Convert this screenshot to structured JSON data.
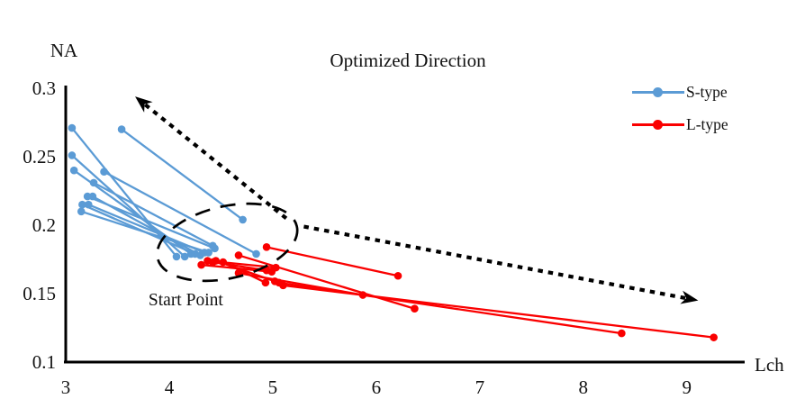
{
  "chart_data": {
    "type": "line",
    "title": "Optimized Direction",
    "xlabel": "Lch",
    "ylabel": "NA",
    "xlim": [
      3,
      9.55
    ],
    "ylim": [
      0.1,
      0.3
    ],
    "x_ticks": [
      "3",
      "4",
      "5",
      "6",
      "7",
      "8",
      "9"
    ],
    "x_tick_values": [
      3,
      4,
      5,
      6,
      7,
      8,
      9
    ],
    "y_ticks": [
      "0.1",
      "0.15",
      "0.2",
      "0.25",
      "0.3"
    ],
    "y_tick_values": [
      0.1,
      0.15,
      0.2,
      0.25,
      0.3
    ],
    "grid": false,
    "legend_position": "top-right",
    "series": [
      {
        "name": "S-type",
        "color": "#5B9BD5",
        "segments": [
          [
            [
              4.07,
              0.177
            ],
            [
              3.06,
              0.271
            ]
          ],
          [
            [
              4.15,
              0.177
            ],
            [
              3.06,
              0.251
            ]
          ],
          [
            [
              4.21,
              0.179
            ],
            [
              3.08,
              0.24
            ]
          ],
          [
            [
              4.25,
              0.179
            ],
            [
              3.16,
              0.215
            ]
          ],
          [
            [
              4.3,
              0.178
            ],
            [
              3.26,
              0.221
            ]
          ],
          [
            [
              4.34,
              0.18
            ],
            [
              3.22,
              0.215
            ]
          ],
          [
            [
              4.38,
              0.18
            ],
            [
              3.15,
              0.21
            ]
          ],
          [
            [
              4.44,
              0.183
            ],
            [
              3.21,
              0.221
            ]
          ],
          [
            [
              4.42,
              0.185
            ],
            [
              3.27,
              0.231
            ]
          ],
          [
            [
              4.71,
              0.204
            ],
            [
              3.54,
              0.27
            ]
          ],
          [
            [
              4.84,
              0.179
            ],
            [
              3.37,
              0.239
            ]
          ]
        ]
      },
      {
        "name": "L-type",
        "color": "#FA0000",
        "segments": [
          [
            [
              4.94,
              0.184
            ],
            [
              6.21,
              0.163
            ]
          ],
          [
            [
              4.67,
              0.165
            ],
            [
              5.87,
              0.149
            ]
          ],
          [
            [
              4.67,
              0.178
            ],
            [
              6.37,
              0.139
            ]
          ],
          [
            [
              5.06,
              0.158
            ],
            [
              8.37,
              0.121
            ]
          ],
          [
            [
              5.1,
              0.156
            ],
            [
              9.26,
              0.118
            ]
          ],
          [
            [
              4.31,
              0.171
            ],
            [
              4.99,
              0.166
            ]
          ],
          [
            [
              4.37,
              0.174
            ],
            [
              5.03,
              0.169
            ]
          ],
          [
            [
              4.42,
              0.173
            ],
            [
              4.94,
              0.167
            ]
          ],
          [
            [
              4.45,
              0.174
            ],
            [
              5.02,
              0.159
            ]
          ],
          [
            [
              4.52,
              0.173
            ],
            [
              4.93,
              0.158
            ]
          ]
        ]
      }
    ],
    "annotations": {
      "ellipse": {
        "label": "Start Point",
        "center": [
          4.56,
          0.1875
        ],
        "rx_x_units": 0.69,
        "ry_y_units": 0.0263,
        "rotation_deg": -13,
        "label_pos": [
          4.16,
          0.145
        ]
      },
      "arrows": [
        {
          "from": [
            5.13,
            0.205
          ],
          "to": [
            3.67,
            0.294
          ],
          "style": "dotted"
        },
        {
          "from": [
            5.3,
            0.199
          ],
          "to": [
            9.11,
            0.145
          ],
          "style": "dotted"
        }
      ]
    }
  }
}
